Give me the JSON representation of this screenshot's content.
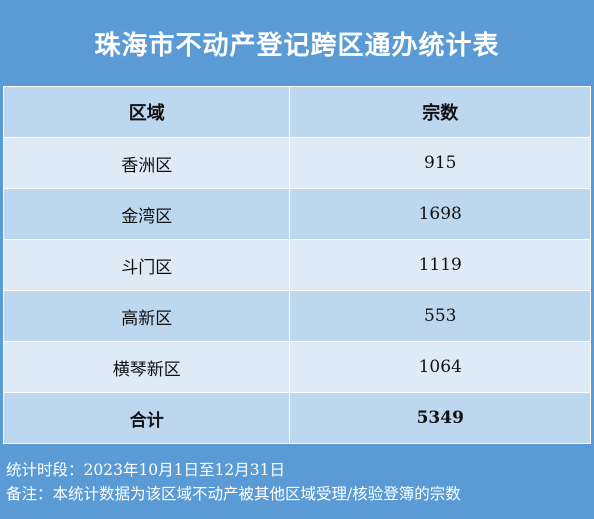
{
  "title": "珠海市不动产登记跨区通办统计表",
  "headers": {
    "region": "区域",
    "count": "宗数"
  },
  "rows": [
    {
      "region": "香洲区",
      "count": "915"
    },
    {
      "region": "金湾区",
      "count": "1698"
    },
    {
      "region": "斗门区",
      "count": "1119"
    },
    {
      "region": "高新区",
      "count": "553"
    },
    {
      "region": "横琴新区",
      "count": "1064"
    }
  ],
  "total": {
    "label": "合计",
    "count": "5349"
  },
  "footer": {
    "period": "统计时段：2023年10月1日至12月31日",
    "note": "备注：本统计数据为该区域不动产被其他区域受理/核验登簿的宗数"
  },
  "colors": {
    "header_blue": "#5b9bd5",
    "row_dark": "#bdd7ee",
    "row_light": "#deebf7"
  }
}
